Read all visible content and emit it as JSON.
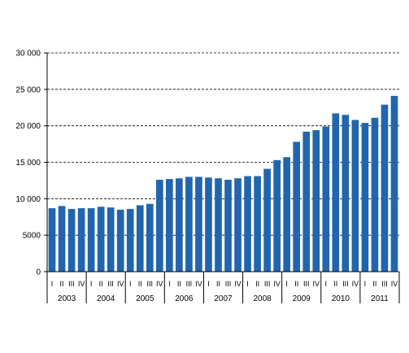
{
  "chart_data": {
    "type": "bar",
    "title": "",
    "xlabel": "",
    "ylabel": "",
    "ylim": [
      0,
      30000
    ],
    "yticks": [
      0,
      5000,
      10000,
      15000,
      20000,
      25000,
      30000
    ],
    "ytick_labels": [
      "0",
      "5000",
      "10 000",
      "15 000",
      "20 000",
      "25 000",
      "30 000"
    ],
    "grid": "horizontal-dashed",
    "bar_color": "#2166ac",
    "quarter_labels": [
      "I",
      "II",
      "III",
      "IV"
    ],
    "years": [
      "2003",
      "2004",
      "2005",
      "2006",
      "2007",
      "2008",
      "2009",
      "2010",
      "2011"
    ],
    "values": [
      8700,
      9000,
      8600,
      8700,
      8700,
      8900,
      8800,
      8500,
      8600,
      9100,
      9300,
      12600,
      12700,
      12800,
      13000,
      13000,
      12900,
      12800,
      12600,
      12800,
      13100,
      13100,
      14100,
      15300,
      15700,
      17800,
      19200,
      19400,
      19900,
      21700,
      21500,
      20800,
      20400,
      21100,
      22900,
      24100
    ]
  }
}
